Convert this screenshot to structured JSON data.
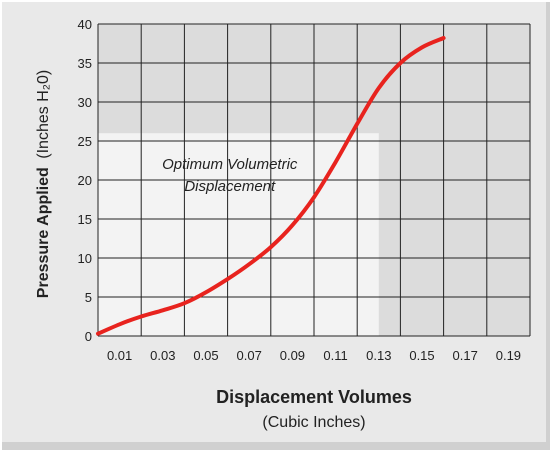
{
  "chart_data": {
    "type": "line",
    "title": "",
    "ylabel": {
      "main": "Pressure Applied",
      "unit": "(Inches H₂0)"
    },
    "xlabel": {
      "main": "Displacement Volumes",
      "unit": "(Cubic Inches)"
    },
    "xlim": [
      0,
      0.2
    ],
    "ylim": [
      0,
      40
    ],
    "x_ticks": [
      "0.01",
      "0.03",
      "0.05",
      "0.07",
      "0.09",
      "0.11",
      "0.13",
      "0.15",
      "0.17",
      "0.19"
    ],
    "x_tick_values": [
      0.01,
      0.03,
      0.05,
      0.07,
      0.09,
      0.11,
      0.13,
      0.15,
      0.17,
      0.19
    ],
    "y_ticks": [
      "0",
      "5",
      "10",
      "15",
      "20",
      "25",
      "30",
      "35",
      "40"
    ],
    "y_tick_values": [
      0,
      5,
      10,
      15,
      20,
      25,
      30,
      35,
      40
    ],
    "grid": true,
    "annotation": {
      "line1": "Optimum Volumetric",
      "line2": "Displacement"
    },
    "highlight_region": {
      "x": [
        0,
        0.13
      ],
      "y": [
        0,
        26
      ]
    },
    "series": [
      {
        "color": "#e8231e",
        "points": [
          [
            0.0,
            0.3
          ],
          [
            0.01,
            1.5
          ],
          [
            0.02,
            2.5
          ],
          [
            0.03,
            3.3
          ],
          [
            0.04,
            4.2
          ],
          [
            0.05,
            5.6
          ],
          [
            0.06,
            7.3
          ],
          [
            0.07,
            9.2
          ],
          [
            0.08,
            11.4
          ],
          [
            0.09,
            14.2
          ],
          [
            0.1,
            17.8
          ],
          [
            0.11,
            22.3
          ],
          [
            0.12,
            27.2
          ],
          [
            0.13,
            31.8
          ],
          [
            0.14,
            35.0
          ],
          [
            0.15,
            37.0
          ],
          [
            0.16,
            38.2
          ]
        ]
      }
    ]
  }
}
